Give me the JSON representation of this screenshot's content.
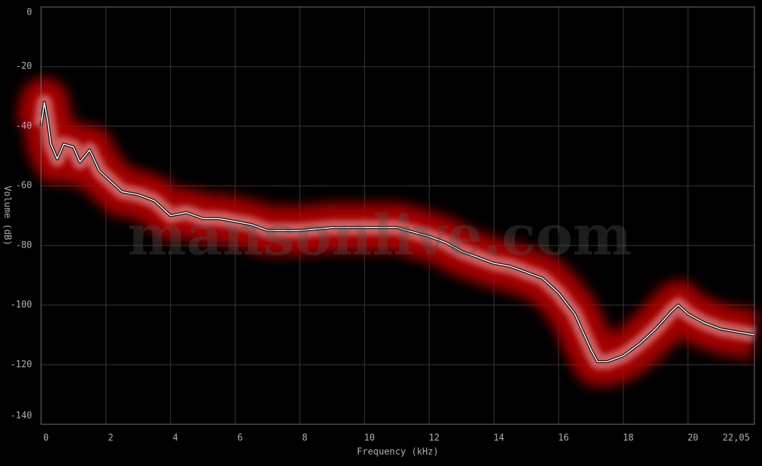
{
  "chart_data": {
    "type": "line",
    "x_label": "Frequency (kHz)",
    "y_label": "Volume (dB)",
    "watermark": "mansonlive.com",
    "x": [
      0,
      0.1,
      0.2,
      0.3,
      0.5,
      0.7,
      1.0,
      1.2,
      1.5,
      1.8,
      2.0,
      2.5,
      3.0,
      3.5,
      4.0,
      4.5,
      5.0,
      5.5,
      6.0,
      6.5,
      7.0,
      8.0,
      9.0,
      10.0,
      11.0,
      12.0,
      12.5,
      13.0,
      13.5,
      14.0,
      14.5,
      15.0,
      15.5,
      16.0,
      16.5,
      17.0,
      17.2,
      17.5,
      18.0,
      18.5,
      19.0,
      19.5,
      19.7,
      20.0,
      20.5,
      21.0,
      21.5,
      22.05
    ],
    "series": [
      {
        "color": "#ffffff",
        "values": [
          -40,
          -32,
          -38,
          -46,
          -51,
          -46,
          -47,
          -52,
          -48,
          -55,
          -57,
          -62,
          -63,
          -65,
          -70,
          -69,
          -71,
          -71,
          -72,
          -73,
          -75,
          -75,
          -74,
          -74,
          -74,
          -77,
          -79,
          -82,
          -84,
          -86,
          -87,
          -89,
          -91,
          -96,
          -103,
          -115,
          -119,
          -119,
          -117,
          -113,
          -108,
          -102,
          -100,
          -103,
          -106,
          -108,
          -109,
          -110
        ]
      }
    ],
    "band_color": "#c00000",
    "xlim": [
      0,
      22.05
    ],
    "ylim": [
      -140,
      0
    ],
    "xticks": [
      0,
      2,
      4,
      6,
      8,
      10,
      12,
      14,
      16,
      18,
      20,
      {
        "value": 22.05,
        "label": "22,05"
      }
    ],
    "yticks": [
      0,
      -20,
      -40,
      -60,
      -80,
      -100,
      -120,
      -140
    ],
    "grid": true
  }
}
